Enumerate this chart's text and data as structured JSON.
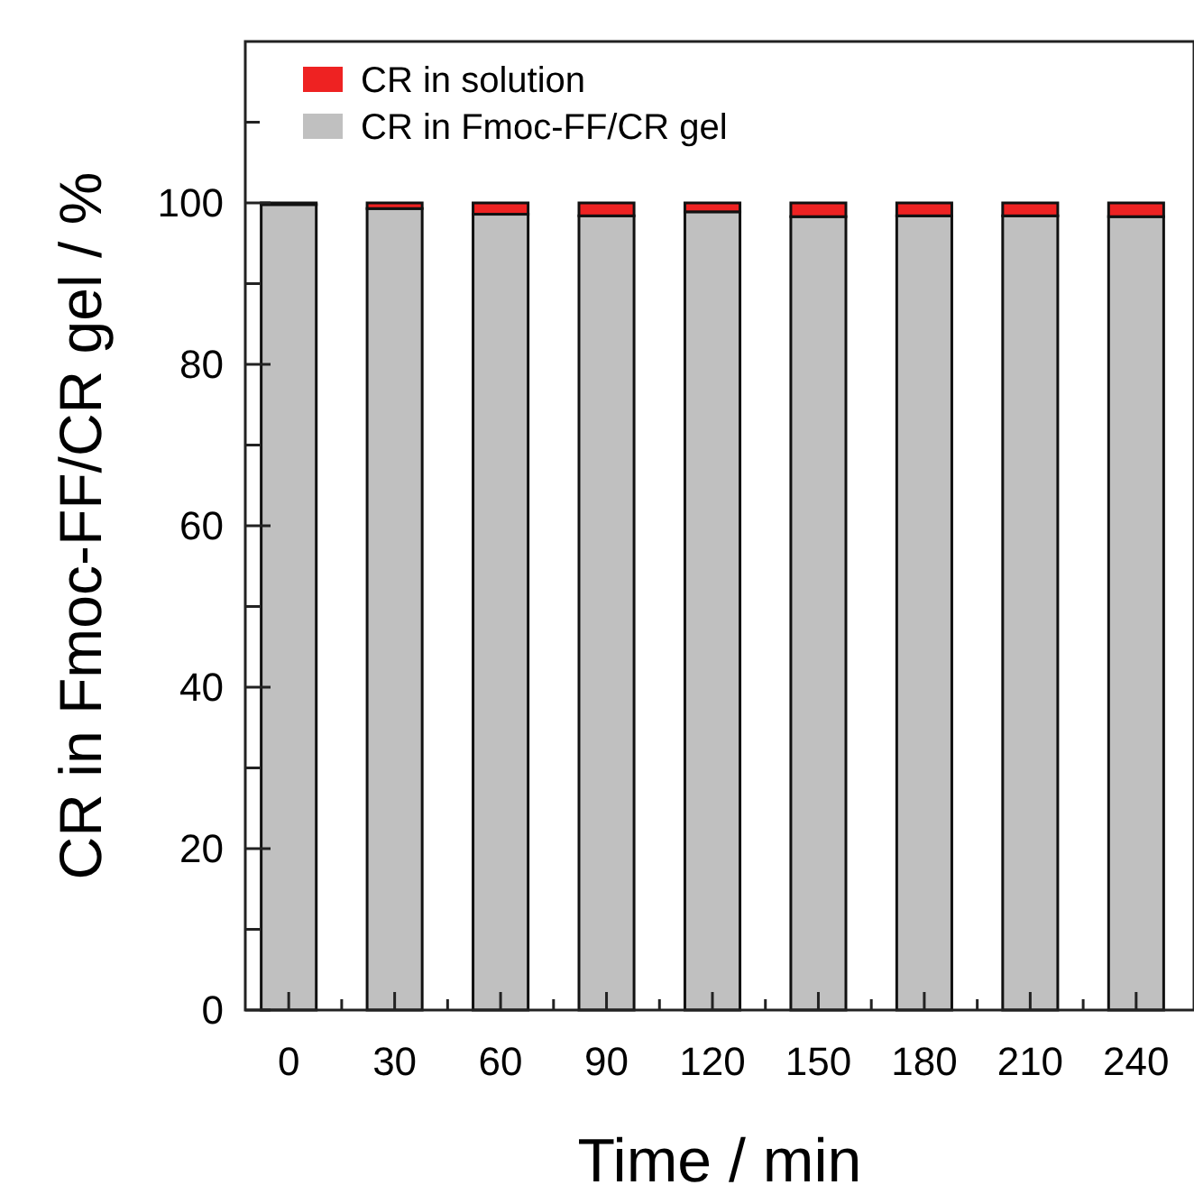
{
  "chart_data": {
    "type": "bar",
    "stacked": true,
    "xlabel": "Time / min",
    "ylabel": "CR in Fmoc-FF/CR gel / %",
    "categories": [
      "0",
      "30",
      "60",
      "90",
      "120",
      "150",
      "180",
      "210",
      "240"
    ],
    "series": [
      {
        "name": "CR in Fmoc-FF/CR gel",
        "color": "#c0c0c0",
        "values": [
          99.8,
          99.3,
          98.6,
          98.4,
          98.9,
          98.3,
          98.4,
          98.4,
          98.3
        ]
      },
      {
        "name": "CR in solution",
        "color": "#ee2222",
        "values": [
          0.2,
          0.7,
          1.4,
          1.6,
          1.1,
          1.7,
          1.6,
          1.6,
          1.7
        ]
      }
    ],
    "ylim": [
      0,
      120
    ],
    "yticks": [
      0,
      {
        "value": 10,
        "label": null
      },
      20,
      {
        "value": 30,
        "label": null
      },
      40,
      {
        "value": 50,
        "label": null
      },
      60,
      {
        "value": 70,
        "label": null
      },
      80,
      {
        "value": 90,
        "label": null
      },
      100,
      {
        "value": 110,
        "label": null
      }
    ],
    "legend": "top left",
    "grid": false
  }
}
